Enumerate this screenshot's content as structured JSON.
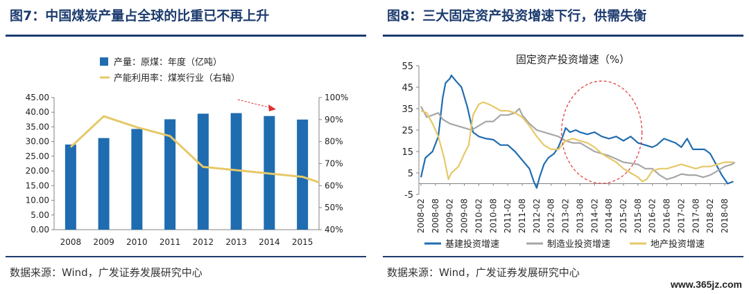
{
  "figures": [
    {
      "title": "图7：中国煤炭产量占全球的比重已不再上升",
      "source": "数据来源：Wind，广发证券发展研究中心"
    },
    {
      "title": "图8：三大固定资产投资增速下行，供需失衡",
      "source": "数据来源：Wind，广发证券发展研究中心"
    }
  ],
  "watermark": "www.365jz.com",
  "colors": {
    "navy": "#1c3b6e",
    "bar_blue": "#1f6cb0",
    "gold": "#e6c867",
    "grey": "#a6a6a6",
    "red": "#e03030"
  },
  "chart_data": [
    {
      "type": "bar",
      "title": "",
      "categories": [
        "2008",
        "2009",
        "2010",
        "2011",
        "2012",
        "2013",
        "2014",
        "2015"
      ],
      "series": [
        {
          "name": "产量：原煤：年度（亿吨）",
          "kind": "bar",
          "axis": "left",
          "values": [
            29.0,
            31.2,
            34.3,
            37.6,
            39.5,
            39.7,
            38.7,
            37.5
          ]
        },
        {
          "name": "产能利用率：煤炭行业（右轴）",
          "kind": "line",
          "axis": "right",
          "values": [
            77.5,
            91.5,
            86.5,
            82.5,
            68.5,
            67.0,
            65.5,
            64.0
          ],
          "end_value": 61.5
        }
      ],
      "yleft": {
        "lim": [
          0,
          45
        ],
        "ticks": [
          "0.00",
          "5.00",
          "10.00",
          "15.00",
          "20.00",
          "25.00",
          "30.00",
          "35.00",
          "40.00",
          "45.00"
        ]
      },
      "yright": {
        "lim": [
          40,
          100
        ],
        "ticks": [
          "40%",
          "50%",
          "60%",
          "70%",
          "80%",
          "90%",
          "100%"
        ]
      },
      "annotation": "red dashed arrow pointing down toward 2014",
      "legend": "top-center",
      "grid": false
    },
    {
      "type": "line",
      "title": "固定资产投资增速（%）",
      "x_ticks": [
        "2008-02",
        "2008-08",
        "2009-02",
        "2009-08",
        "2010-02",
        "2010-08",
        "2011-02",
        "2011-08",
        "2012-02",
        "2012-08",
        "2013-02",
        "2013-08",
        "2014-02",
        "2014-08",
        "2015-02",
        "2015-08",
        "2016-02",
        "2016-08",
        "2017-02",
        "2017-08",
        "2018-02",
        "2018-08"
      ],
      "ylim": [
        -5,
        55
      ],
      "y_ticks": [
        "-5",
        "5",
        "15",
        "25",
        "35",
        "45",
        "55"
      ],
      "series": [
        {
          "name": "基建投资增速",
          "points": [
            [
              0,
              3
            ],
            [
              0.3,
              12
            ],
            [
              0.8,
              15
            ],
            [
              1.2,
              22
            ],
            [
              1.5,
              40
            ],
            [
              1.7,
              47
            ],
            [
              2,
              49
            ],
            [
              2.1,
              50.5
            ],
            [
              2.4,
              48
            ],
            [
              2.8,
              45
            ],
            [
              3.2,
              36
            ],
            [
              3.6,
              24
            ],
            [
              4,
              22
            ],
            [
              4.5,
              21
            ],
            [
              5,
              20.5
            ],
            [
              5.5,
              18
            ],
            [
              6,
              18
            ],
            [
              6.5,
              15
            ],
            [
              7,
              11
            ],
            [
              7.5,
              7
            ],
            [
              7.8,
              1
            ],
            [
              8,
              -2
            ],
            [
              8.2,
              3
            ],
            [
              8.5,
              9
            ],
            [
              8.8,
              12
            ],
            [
              9.2,
              14
            ],
            [
              9.5,
              17
            ],
            [
              9.8,
              22
            ],
            [
              10,
              26
            ],
            [
              10.3,
              24
            ],
            [
              10.7,
              25
            ],
            [
              11,
              24
            ],
            [
              11.5,
              23
            ],
            [
              12,
              24
            ],
            [
              12.5,
              22
            ],
            [
              13,
              21
            ],
            [
              13.5,
              22
            ],
            [
              14,
              20
            ],
            [
              14.5,
              22
            ],
            [
              15,
              19
            ],
            [
              15.5,
              18
            ],
            [
              16,
              17
            ],
            [
              16.3,
              18
            ],
            [
              16.8,
              21
            ],
            [
              17.2,
              20
            ],
            [
              17.6,
              19
            ],
            [
              18,
              17
            ],
            [
              18.4,
              21
            ],
            [
              18.8,
              16
            ],
            [
              19.2,
              16
            ],
            [
              19.6,
              16
            ],
            [
              20,
              14
            ],
            [
              20.4,
              9
            ],
            [
              20.8,
              4
            ],
            [
              21.2,
              0
            ],
            [
              21.6,
              1
            ]
          ]
        },
        {
          "name": "制造业投资增速",
          "points": [
            [
              0,
              36
            ],
            [
              0.4,
              31
            ],
            [
              0.8,
              32
            ],
            [
              1.2,
              33
            ],
            [
              1.5,
              30
            ],
            [
              2,
              28
            ],
            [
              2.5,
              27
            ],
            [
              3,
              26
            ],
            [
              3.5,
              25
            ],
            [
              4,
              27
            ],
            [
              4.5,
              29
            ],
            [
              5,
              29
            ],
            [
              5.5,
              32
            ],
            [
              6,
              32
            ],
            [
              6.5,
              33
            ],
            [
              6.8,
              35
            ],
            [
              7,
              32
            ],
            [
              7.5,
              28
            ],
            [
              8,
              25
            ],
            [
              8.5,
              24
            ],
            [
              9,
              23
            ],
            [
              9.5,
              22
            ],
            [
              10,
              20
            ],
            [
              10.5,
              19
            ],
            [
              11,
              19
            ],
            [
              11.5,
              17
            ],
            [
              12,
              15
            ],
            [
              12.5,
              14
            ],
            [
              13,
              13
            ],
            [
              13.5,
              11.5
            ],
            [
              14,
              10
            ],
            [
              14.5,
              9.5
            ],
            [
              15,
              9
            ],
            [
              15.5,
              7
            ],
            [
              16,
              7
            ],
            [
              16.5,
              4
            ],
            [
              17,
              2
            ],
            [
              17.5,
              3
            ],
            [
              18,
              4.5
            ],
            [
              18.5,
              4
            ],
            [
              19,
              4
            ],
            [
              19.5,
              3
            ],
            [
              20,
              4
            ],
            [
              20.5,
              6
            ],
            [
              21,
              8
            ],
            [
              21.5,
              9
            ],
            [
              21.7,
              10
            ]
          ]
        },
        {
          "name": "地产投资增速",
          "points": [
            [
              0,
              34
            ],
            [
              0.4,
              33
            ],
            [
              0.8,
              28
            ],
            [
              1.2,
              22
            ],
            [
              1.6,
              12
            ],
            [
              1.9,
              2
            ],
            [
              2.1,
              5
            ],
            [
              2.6,
              8
            ],
            [
              3,
              14
            ],
            [
              3.3,
              18
            ],
            [
              3.6,
              32
            ],
            [
              4,
              37
            ],
            [
              4.3,
              38
            ],
            [
              4.7,
              37
            ],
            [
              5,
              36
            ],
            [
              5.5,
              34
            ],
            [
              6,
              34
            ],
            [
              6.5,
              33
            ],
            [
              7,
              31
            ],
            [
              7.5,
              27
            ],
            [
              8,
              22
            ],
            [
              8.5,
              18
            ],
            [
              9,
              16
            ],
            [
              9.5,
              16
            ],
            [
              10,
              20
            ],
            [
              10.5,
              21
            ],
            [
              11,
              20
            ],
            [
              11.5,
              19
            ],
            [
              12,
              17
            ],
            [
              12.5,
              14
            ],
            [
              13,
              12
            ],
            [
              13.5,
              10
            ],
            [
              14,
              7
            ],
            [
              14.5,
              5
            ],
            [
              15,
              3
            ],
            [
              15.3,
              1
            ],
            [
              15.6,
              2
            ],
            [
              16,
              6
            ],
            [
              16.5,
              7
            ],
            [
              17,
              7
            ],
            [
              17.5,
              8
            ],
            [
              18,
              9
            ],
            [
              18.5,
              8
            ],
            [
              19,
              7
            ],
            [
              19.5,
              8
            ],
            [
              20,
              8
            ],
            [
              20.5,
              9
            ],
            [
              21,
              10
            ],
            [
              21.6,
              10
            ]
          ]
        }
      ],
      "annotation": "red dashed ellipse around 2013-02 to 2016-02",
      "legend": "bottom",
      "grid": false
    }
  ]
}
